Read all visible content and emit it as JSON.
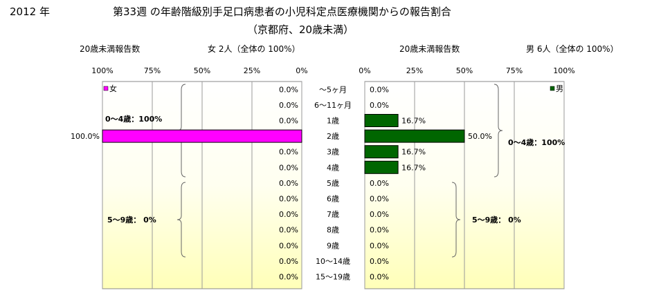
{
  "header": {
    "year": "2012 年",
    "title_line1": "第33週 の年齢階級別手足口病患者の小児科定点医療機関からの報告割合",
    "title_line2": "（京都府、20歳未満）"
  },
  "female_panel": {
    "count_label": "20歳未満報告数",
    "total_text": "女  2人（全体の  100%）",
    "legend": "女",
    "group_label_0_4": "0～4歳：100%",
    "group_label_5_9": "5～9歳：  0%"
  },
  "male_panel": {
    "count_label": "20歳未満報告数",
    "total_text": "男  6人（全体の  100%）",
    "legend": "男",
    "group_label_0_4": "0～4歳：100%",
    "group_label_5_9": "5～9歳：  0%"
  },
  "colors": {
    "female": "#ff00ff",
    "male": "#006600"
  },
  "chart_data": [
    {
      "type": "bar",
      "orientation": "horizontal",
      "direction": "right-to-left",
      "series": [
        {
          "name": "女",
          "values": [
            0,
            0,
            0,
            100,
            0,
            0,
            0,
            0,
            0,
            0,
            0,
            0,
            0
          ]
        }
      ],
      "categories": [
        "～5ヶ月",
        "6～11ヶ月",
        "1歳",
        "2歳",
        "3歳",
        "4歳",
        "5歳",
        "6歳",
        "7歳",
        "8歳",
        "9歳",
        "10～14歳",
        "15～19歳"
      ],
      "value_labels": [
        "0.0%",
        "0.0%",
        "0.0%",
        "100.0%",
        "0.0%",
        "0.0%",
        "0.0%",
        "0.0%",
        "0.0%",
        "0.0%",
        "0.0%",
        "0.0%",
        "0.0%"
      ],
      "xlim": [
        0,
        100
      ],
      "ticks": [
        "100%",
        "75%",
        "50%",
        "25%",
        "0%"
      ],
      "grid": true,
      "legend_position": "top-left"
    },
    {
      "type": "bar",
      "orientation": "horizontal",
      "direction": "left-to-right",
      "series": [
        {
          "name": "男",
          "values": [
            0,
            0,
            16.7,
            50,
            16.7,
            16.7,
            0,
            0,
            0,
            0,
            0,
            0,
            0
          ]
        }
      ],
      "categories": [
        "～5ヶ月",
        "6～11ヶ月",
        "1歳",
        "2歳",
        "3歳",
        "4歳",
        "5歳",
        "6歳",
        "7歳",
        "8歳",
        "9歳",
        "10～14歳",
        "15～19歳"
      ],
      "value_labels": [
        "0.0%",
        "0.0%",
        "16.7%",
        "50.0%",
        "16.7%",
        "16.7%",
        "0.0%",
        "0.0%",
        "0.0%",
        "0.0%",
        "0.0%",
        "0.0%",
        "0.0%"
      ],
      "xlim": [
        0,
        100
      ],
      "ticks": [
        "0%",
        "25%",
        "50%",
        "75%",
        "100%"
      ],
      "grid": true,
      "legend_position": "top-right"
    }
  ]
}
